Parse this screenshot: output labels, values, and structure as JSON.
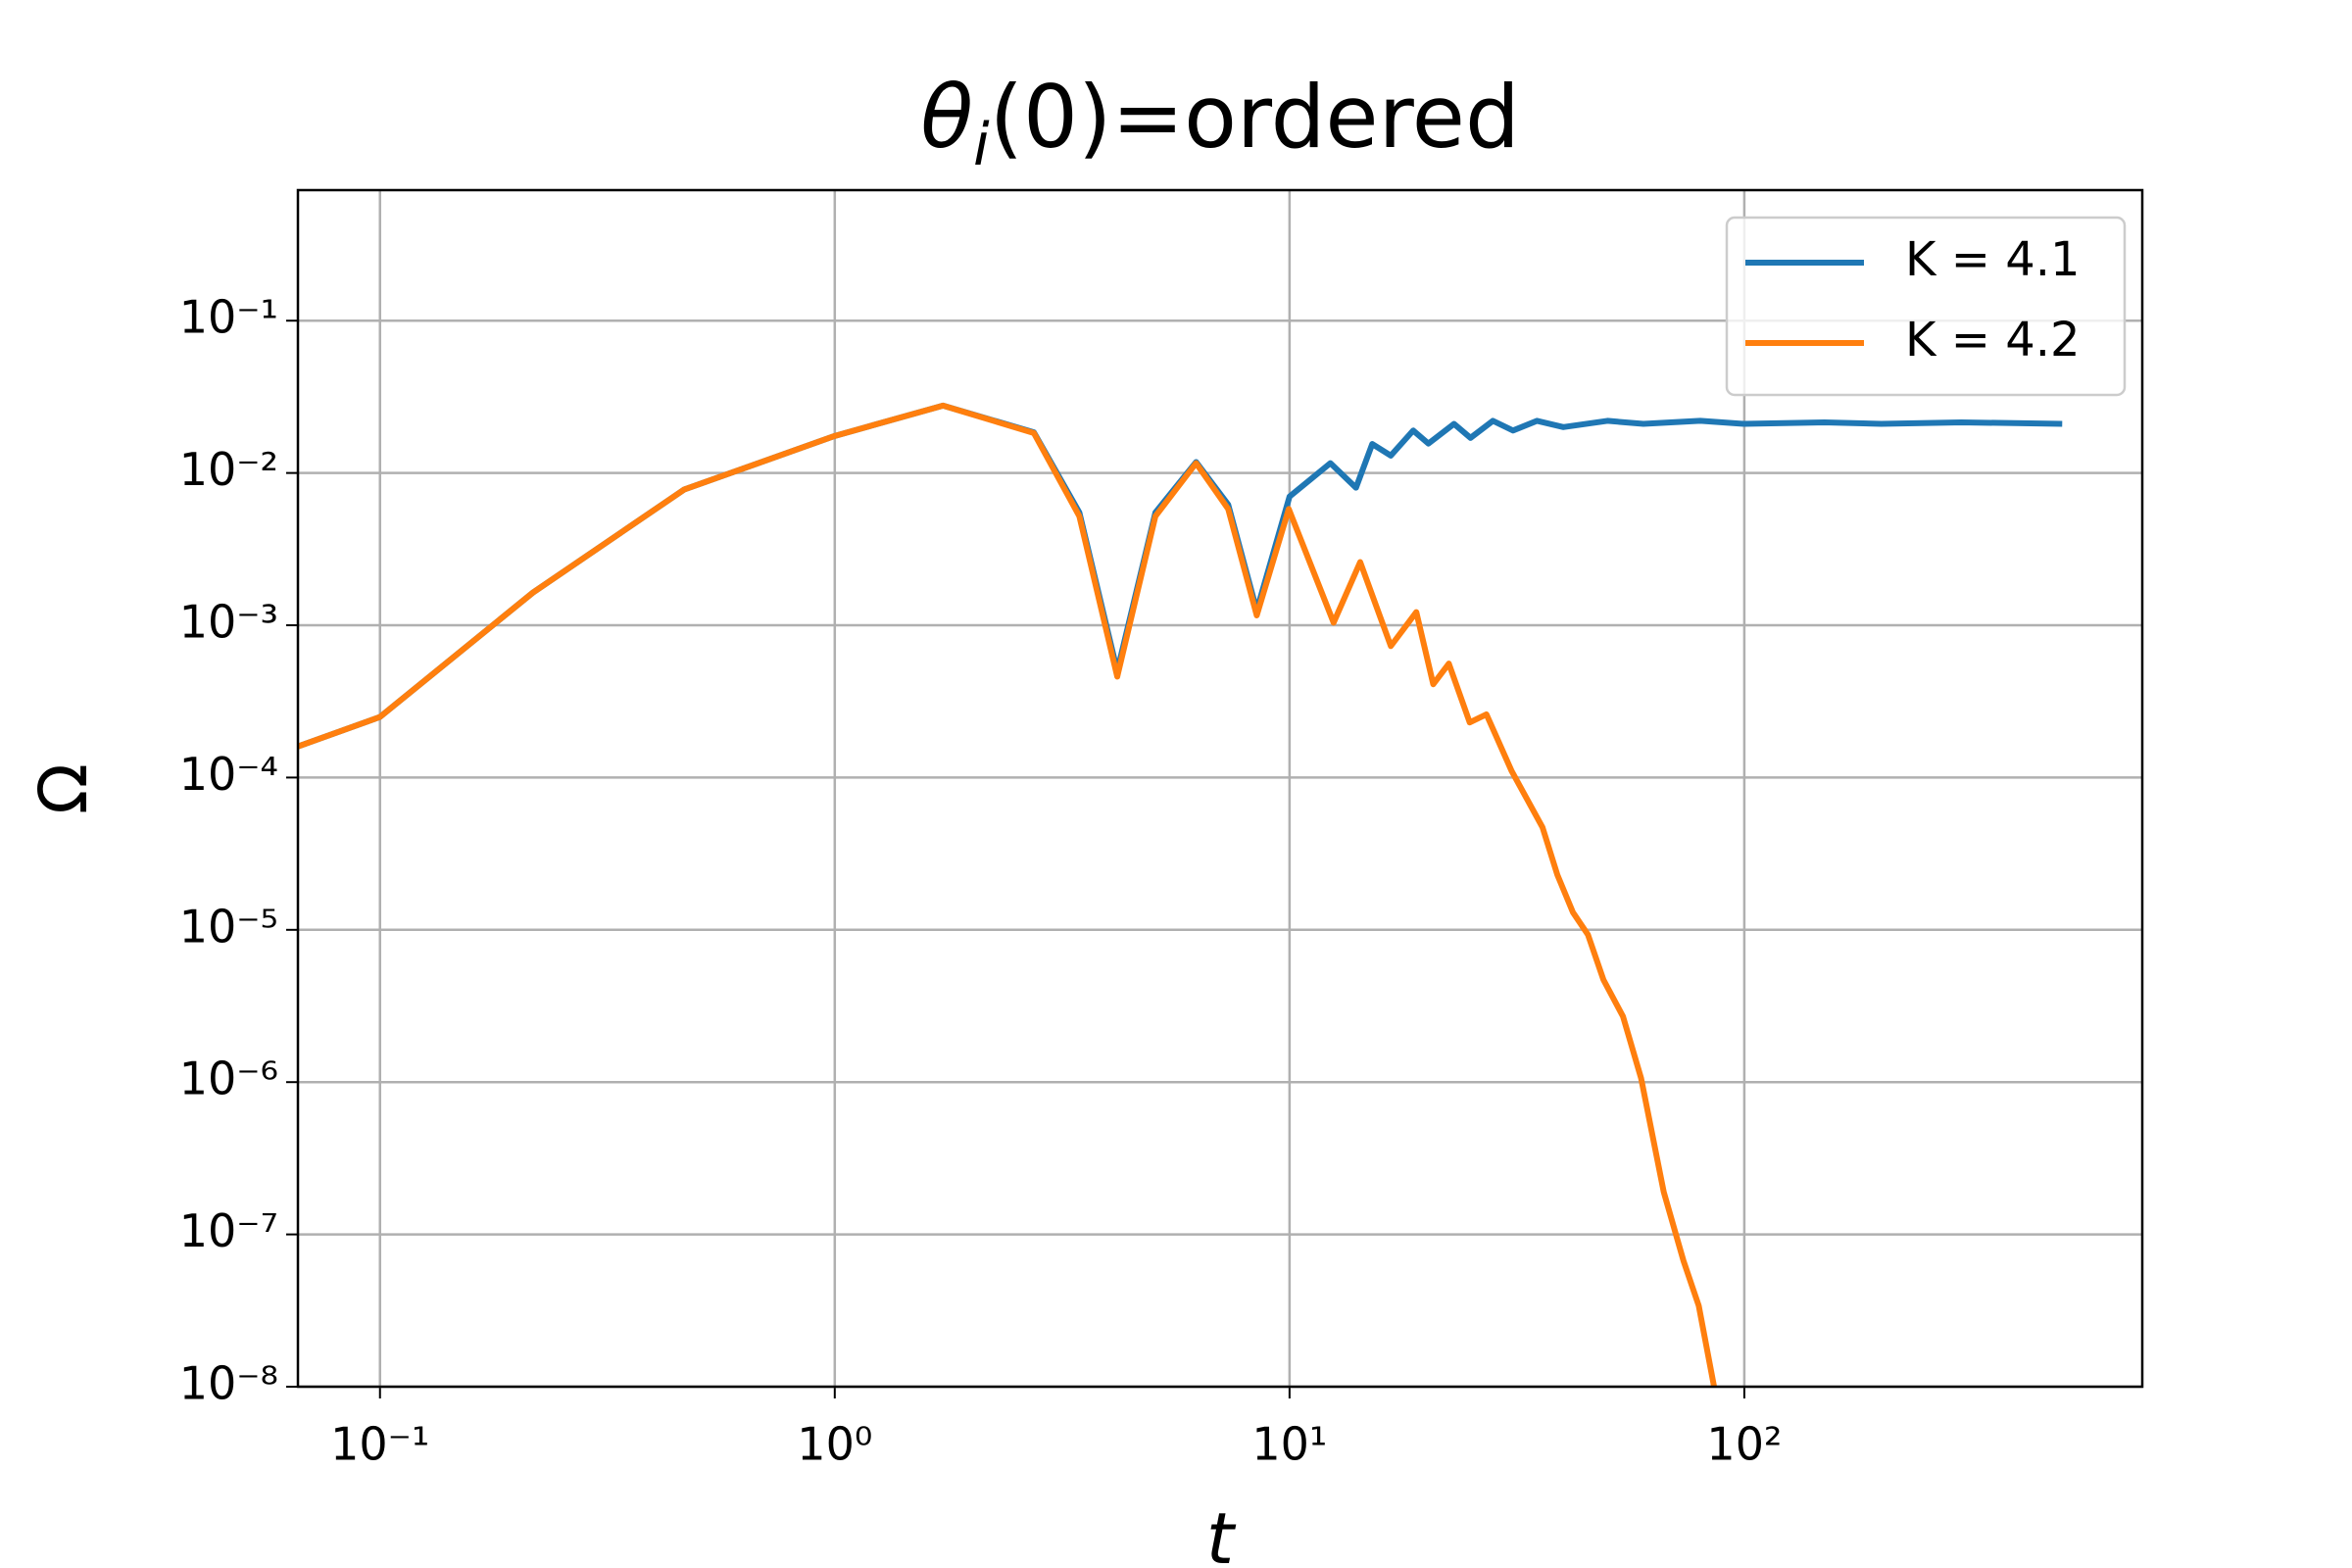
{
  "chart_data": {
    "type": "line",
    "title": [
      "θ",
      "i",
      "(0)=ordered"
    ],
    "x_label": "t",
    "y_label": "Ω",
    "x_log": true,
    "y_log": true,
    "grid": true,
    "legend": "upper right",
    "xlim": [
      0.066,
      750
    ],
    "ylim": [
      1e-08,
      0.72
    ],
    "xticks": [
      {
        "value": 0.1,
        "label": "10⁻¹"
      },
      {
        "value": 1,
        "label": "10⁰"
      },
      {
        "value": 10,
        "label": "10¹"
      },
      {
        "value": 100,
        "label": "10²"
      }
    ],
    "yticks": [
      {
        "value": 1e-08,
        "label": "10⁻⁸"
      },
      {
        "value": 1e-07,
        "label": "10⁻⁷"
      },
      {
        "value": 1e-06,
        "label": "10⁻⁶"
      },
      {
        "value": 1e-05,
        "label": "10⁻⁵"
      },
      {
        "value": 0.0001,
        "label": "10⁻⁴"
      },
      {
        "value": 0.001,
        "label": "10⁻³"
      },
      {
        "value": 0.01,
        "label": "10⁻²"
      },
      {
        "value": 0.1,
        "label": "10⁻¹"
      }
    ],
    "series": [
      {
        "name": "K = 4.1",
        "color": "#1f77b4",
        "x": [
          0.066,
          0.1,
          0.217,
          0.467,
          1,
          1.73,
          2.74,
          3.45,
          4.18,
          5.07,
          6.23,
          7.33,
          8.47,
          10,
          12.3,
          14,
          15.2,
          16.7,
          18.7,
          20.2,
          23,
          25,
          28,
          31,
          35,
          40,
          50,
          60,
          80,
          100,
          150,
          200,
          300,
          500
        ],
        "values": [
          0.00016,
          0.00025,
          0.00164,
          0.0078,
          0.0175,
          0.0277,
          0.0185,
          0.0055,
          0.0005,
          0.0055,
          0.0118,
          0.0062,
          0.00125,
          0.007,
          0.0116,
          0.008,
          0.0155,
          0.013,
          0.019,
          0.0156,
          0.021,
          0.017,
          0.022,
          0.019,
          0.022,
          0.02,
          0.022,
          0.021,
          0.022,
          0.021,
          0.0215,
          0.021,
          0.0215,
          0.021
        ]
      },
      {
        "name": "K = 4.2",
        "color": "#ff7f0e",
        "x": [
          0.066,
          0.1,
          0.217,
          0.467,
          1,
          1.73,
          2.74,
          3.45,
          4.18,
          5.07,
          6.23,
          7.33,
          8.47,
          9.96,
          12.5,
          14.3,
          16.7,
          19,
          20.7,
          22.4,
          24.9,
          27.1,
          30.8,
          36,
          38.8,
          42,
          45.3,
          49,
          54.1,
          59.3,
          66.5,
          73.5,
          79.4,
          85.8,
          88.5
        ],
        "values": [
          0.00016,
          0.00025,
          0.00164,
          0.0078,
          0.0175,
          0.0277,
          0.0183,
          0.0052,
          0.00046,
          0.0052,
          0.0116,
          0.0058,
          0.00116,
          0.0058,
          0.00104,
          0.0026,
          0.00073,
          0.00122,
          0.00041,
          0.00056,
          0.00023,
          0.00026,
          0.00011,
          4.7e-05,
          2.3e-05,
          1.3e-05,
          9.3e-06,
          4.7e-06,
          2.7e-06,
          1.06e-06,
          1.9e-07,
          6.7e-08,
          3.4e-08,
          1e-08,
          5.4e-09
        ]
      }
    ]
  }
}
